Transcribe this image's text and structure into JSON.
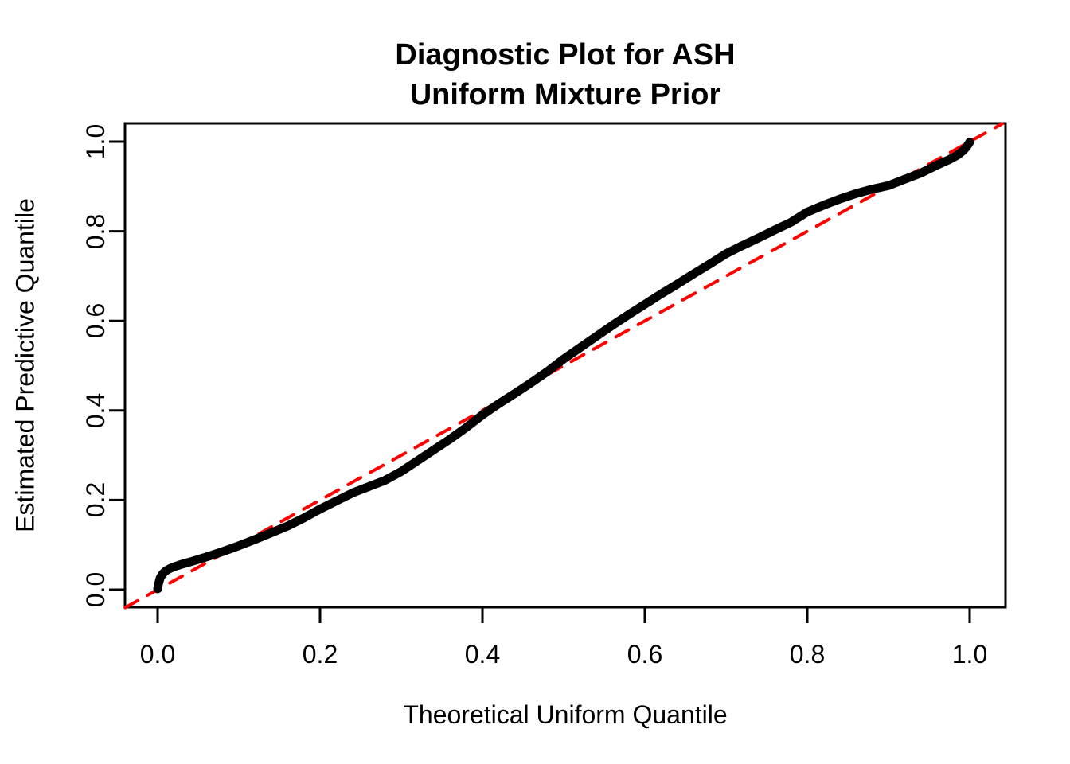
{
  "title": {
    "line1": "Diagnostic Plot for ASH",
    "line2": "Uniform Mixture Prior"
  },
  "colors": {
    "background": "#FFFFFF",
    "axis": "#000000",
    "curve": "#000000",
    "reference_line": "#FF0000"
  },
  "chart_data": {
    "type": "line",
    "title": "Diagnostic Plot for ASH\nUniform Mixture Prior",
    "xlabel": "Theoretical Uniform Quantile",
    "ylabel": "Estimated Predictive Quantile",
    "xlim": [
      -0.04,
      1.04
    ],
    "ylim": [
      -0.04,
      1.04
    ],
    "grid": false,
    "legend": "none",
    "x_ticks": [
      0.0,
      0.2,
      0.4,
      0.6,
      0.8,
      1.0
    ],
    "x_tick_labels": [
      "0.0",
      "0.2",
      "0.4",
      "0.6",
      "0.8",
      "1.0"
    ],
    "y_ticks": [
      0.0,
      0.2,
      0.4,
      0.6,
      0.8,
      1.0
    ],
    "y_tick_labels": [
      "0.0",
      "0.2",
      "0.4",
      "0.6",
      "0.8",
      "1.0"
    ],
    "series": [
      {
        "name": "estimated-vs-theoretical-quantiles",
        "type": "line",
        "color": "#000000",
        "linewidth": 11,
        "linestyle": "solid",
        "points": [
          [
            0.0,
            0.002
          ],
          [
            0.001,
            0.012
          ],
          [
            0.003,
            0.026
          ],
          [
            0.006,
            0.035
          ],
          [
            0.01,
            0.042
          ],
          [
            0.015,
            0.047
          ],
          [
            0.02,
            0.051
          ],
          [
            0.03,
            0.057
          ],
          [
            0.04,
            0.062
          ],
          [
            0.06,
            0.073
          ],
          [
            0.08,
            0.085
          ],
          [
            0.1,
            0.098
          ],
          [
            0.12,
            0.112
          ],
          [
            0.14,
            0.127
          ],
          [
            0.16,
            0.142
          ],
          [
            0.18,
            0.16
          ],
          [
            0.2,
            0.18
          ],
          [
            0.22,
            0.198
          ],
          [
            0.24,
            0.216
          ],
          [
            0.26,
            0.23
          ],
          [
            0.28,
            0.244
          ],
          [
            0.3,
            0.264
          ],
          [
            0.32,
            0.288
          ],
          [
            0.34,
            0.312
          ],
          [
            0.36,
            0.336
          ],
          [
            0.38,
            0.362
          ],
          [
            0.4,
            0.39
          ],
          [
            0.42,
            0.415
          ],
          [
            0.44,
            0.438
          ],
          [
            0.46,
            0.462
          ],
          [
            0.48,
            0.487
          ],
          [
            0.5,
            0.515
          ],
          [
            0.52,
            0.54
          ],
          [
            0.54,
            0.565
          ],
          [
            0.56,
            0.59
          ],
          [
            0.58,
            0.614
          ],
          [
            0.6,
            0.637
          ],
          [
            0.62,
            0.66
          ],
          [
            0.64,
            0.682
          ],
          [
            0.66,
            0.705
          ],
          [
            0.68,
            0.727
          ],
          [
            0.7,
            0.75
          ],
          [
            0.72,
            0.768
          ],
          [
            0.74,
            0.785
          ],
          [
            0.76,
            0.803
          ],
          [
            0.78,
            0.82
          ],
          [
            0.8,
            0.843
          ],
          [
            0.82,
            0.858
          ],
          [
            0.84,
            0.872
          ],
          [
            0.86,
            0.884
          ],
          [
            0.88,
            0.894
          ],
          [
            0.9,
            0.902
          ],
          [
            0.92,
            0.916
          ],
          [
            0.94,
            0.93
          ],
          [
            0.96,
            0.948
          ],
          [
            0.975,
            0.96
          ],
          [
            0.985,
            0.97
          ],
          [
            0.992,
            0.98
          ],
          [
            0.996,
            0.988
          ],
          [
            1.0,
            0.999
          ]
        ]
      },
      {
        "name": "reference-identity-line",
        "type": "line",
        "color": "#FF0000",
        "linewidth": 4,
        "linestyle": "dashed",
        "points": [
          [
            -0.04,
            -0.04
          ],
          [
            1.04,
            1.04
          ]
        ]
      }
    ]
  }
}
